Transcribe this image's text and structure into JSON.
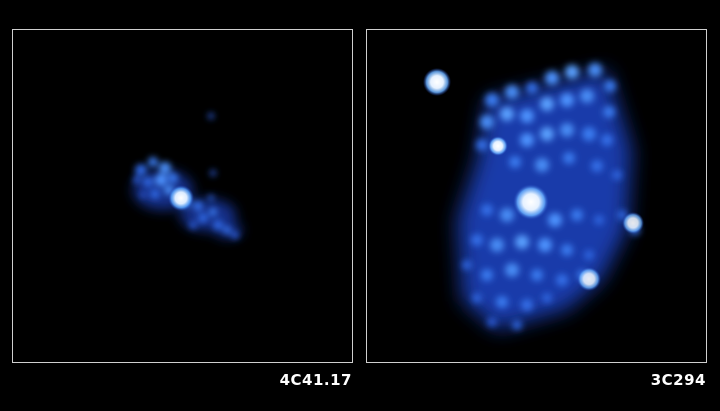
{
  "panels": [
    {
      "label": "4C41.17"
    },
    {
      "label": "3C294"
    }
  ],
  "colors": {
    "background": "#000000",
    "frame": "#cfcfcf",
    "glow_core": "#ffffff",
    "glow_mid": "#5aa6ff",
    "glow_outer": "#1a3fb8"
  }
}
